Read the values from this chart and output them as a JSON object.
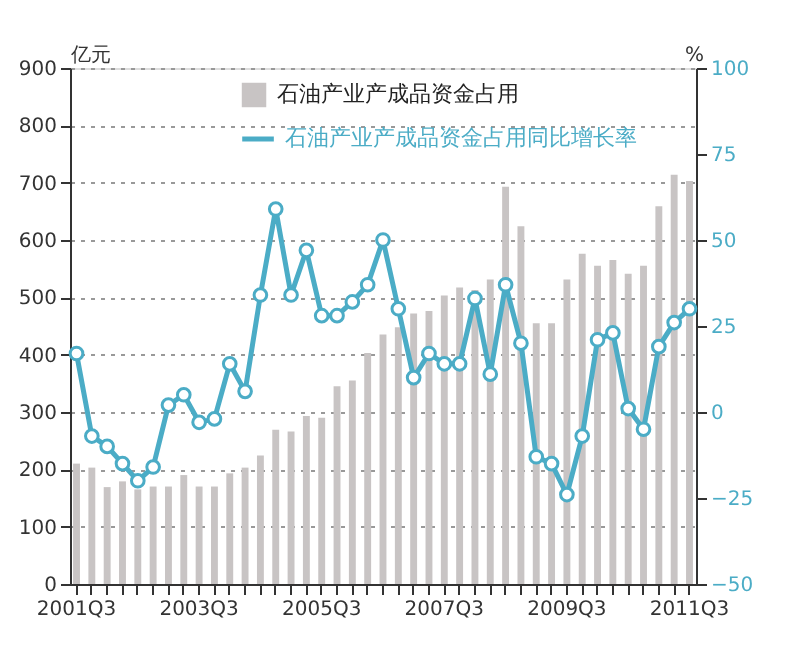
{
  "chart_data": {
    "type": "bar",
    "ylabel": "亿元",
    "y2label": "%",
    "categories": [
      "2001Q3",
      null,
      null,
      null,
      null,
      null,
      null,
      null,
      "2003Q3",
      null,
      null,
      null,
      null,
      null,
      null,
      null,
      "2005Q3",
      null,
      null,
      null,
      null,
      null,
      null,
      null,
      "2007Q3",
      null,
      null,
      null,
      null,
      null,
      null,
      null,
      "2009Q3",
      null,
      null,
      null,
      null,
      null,
      null,
      null,
      "2011Q3"
    ],
    "series": [
      {
        "name": "石油产业产成品资金占用",
        "color": "#c8c4c4",
        "values": [
          210,
          203,
          169,
          179,
          165,
          170,
          170,
          190,
          170,
          170,
          193,
          203,
          224,
          269,
          266,
          293,
          290,
          345,
          355,
          403,
          435,
          448,
          472,
          476,
          503,
          517,
          513,
          531,
          693,
          624,
          455,
          455,
          531,
          576,
          555,
          565,
          541,
          555,
          659,
          714,
          703
        ]
      },
      {
        "name": "石油产业产成品资金占用同比增长率",
        "type": "line",
        "axis": "y2",
        "color": "#4bacc6",
        "marker": "circle",
        "line_style": "solid",
        "values": [
          17,
          -7,
          -10,
          -15,
          -20,
          -16,
          2,
          5,
          -3,
          -2,
          14,
          6,
          34,
          59,
          34,
          47,
          28,
          28,
          32,
          37,
          50,
          30,
          10,
          17,
          14,
          14,
          33,
          11,
          37,
          20,
          -13,
          -15,
          -24,
          -7,
          21,
          23,
          1,
          -5,
          19,
          26,
          30
        ]
      }
    ],
    "ylim": [
      0,
      900
    ],
    "yticks": [
      0,
      100,
      200,
      300,
      400,
      500,
      600,
      700,
      800,
      900
    ],
    "y2lim": [
      -50,
      100
    ],
    "y2ticks": [
      -50,
      -25,
      0,
      25,
      50,
      75,
      100
    ],
    "grid": "y",
    "legend": "top"
  }
}
